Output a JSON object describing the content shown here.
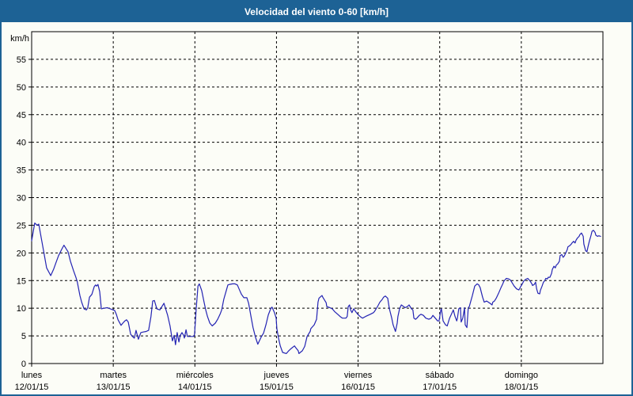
{
  "window": {
    "title": "Velocidad del viento 0-60 [km/h]"
  },
  "colors": {
    "titlebar_bg": "#1d6295",
    "title_text": "#ffffff",
    "outer_border": "#1d6295",
    "background": "#fcfdf7",
    "line": "#2323b3",
    "grid": "#000000",
    "axis_text": "#000000"
  },
  "chart_data": {
    "type": "line",
    "title": "Velocidad del viento 0-60 [km/h]",
    "ylabel": "km/h",
    "xlabel": "",
    "ylim": [
      0,
      60
    ],
    "yticks": [
      0,
      5,
      10,
      15,
      20,
      25,
      30,
      35,
      40,
      45,
      50,
      55
    ],
    "x_range_hours": [
      0,
      168
    ],
    "grid": "dashed-black",
    "legend": "none",
    "x_days": [
      {
        "name": "lunes",
        "date": "12/01/15",
        "hour": 0
      },
      {
        "name": "martes",
        "date": "13/01/15",
        "hour": 24
      },
      {
        "name": "miércoles",
        "date": "14/01/15",
        "hour": 48
      },
      {
        "name": "jueves",
        "date": "15/01/15",
        "hour": 72
      },
      {
        "name": "viernes",
        "date": "16/01/15",
        "hour": 96
      },
      {
        "name": "sábado",
        "date": "17/01/15",
        "hour": 120
      },
      {
        "name": "domingo",
        "date": "18/01/15",
        "hour": 144
      }
    ],
    "series": [
      {
        "name": "Velocidad del viento",
        "unit": "km/h",
        "color": "#2323b3",
        "points_hours_kmh": [
          [
            0,
            22.2
          ],
          [
            0.9,
            25.4
          ],
          [
            1.6,
            25.0
          ],
          [
            2.1,
            25.2
          ],
          [
            3,
            22.1
          ],
          [
            3.7,
            19.7
          ],
          [
            4.4,
            17.3
          ],
          [
            5.6,
            15.9
          ],
          [
            6.5,
            17.1
          ],
          [
            7.2,
            18.3
          ],
          [
            7.9,
            19.5
          ],
          [
            8.8,
            20.6
          ],
          [
            9.5,
            21.4
          ],
          [
            10.7,
            20.2
          ],
          [
            11.4,
            18.5
          ],
          [
            12.3,
            16.8
          ],
          [
            13,
            15.6
          ],
          [
            13.4,
            14.8
          ],
          [
            14.2,
            12.3
          ],
          [
            14.7,
            11.1
          ],
          [
            15.4,
            9.9
          ],
          [
            16.1,
            9.7
          ],
          [
            16.5,
            10.1
          ],
          [
            17,
            12
          ],
          [
            17.7,
            12.5
          ],
          [
            18.4,
            13.9
          ],
          [
            18.8,
            14.2
          ],
          [
            19.1,
            14
          ],
          [
            19.5,
            14.3
          ],
          [
            20,
            13
          ],
          [
            20.5,
            9.9
          ],
          [
            21.2,
            10
          ],
          [
            22.3,
            10.1
          ],
          [
            23.5,
            9.8
          ],
          [
            24.4,
            9.6
          ],
          [
            24.9,
            8.9
          ],
          [
            25.4,
            7.9
          ],
          [
            26.3,
            6.9
          ],
          [
            26.8,
            7.3
          ],
          [
            27.4,
            7.7
          ],
          [
            27.9,
            7.9
          ],
          [
            28.4,
            7.5
          ],
          [
            29.1,
            5.3
          ],
          [
            29.8,
            4.8
          ],
          [
            30.2,
            4.6
          ],
          [
            30.7,
            6
          ],
          [
            31.4,
            4.4
          ],
          [
            32.1,
            5.6
          ],
          [
            32.8,
            5.7
          ],
          [
            33.7,
            5.8
          ],
          [
            34.4,
            6
          ],
          [
            35.1,
            8.5
          ],
          [
            35.6,
            11.3
          ],
          [
            36.1,
            11.4
          ],
          [
            36.8,
            9.9
          ],
          [
            37.7,
            9.7
          ],
          [
            38.9,
            10.9
          ],
          [
            40,
            8.7
          ],
          [
            40.7,
            6.8
          ],
          [
            41.4,
            4.1
          ],
          [
            41.9,
            5.1
          ],
          [
            42.3,
            3.4
          ],
          [
            42.8,
            5.6
          ],
          [
            43.3,
            3.9
          ],
          [
            43.7,
            5.1
          ],
          [
            44.2,
            5.6
          ],
          [
            44.7,
            5.1
          ],
          [
            44.9,
            4.6
          ],
          [
            45.4,
            6.1
          ],
          [
            45.8,
            4.9
          ],
          [
            46.5,
            4.9
          ],
          [
            47.7,
            4.9
          ],
          [
            47.9,
            5.3
          ],
          [
            48.4,
            10
          ],
          [
            48.9,
            14
          ],
          [
            49.3,
            14.4
          ],
          [
            50,
            13.2
          ],
          [
            50.7,
            11.1
          ],
          [
            51.2,
            9.7
          ],
          [
            51.7,
            8.5
          ],
          [
            52.4,
            7.3
          ],
          [
            53.1,
            6.8
          ],
          [
            54,
            7.3
          ],
          [
            54.7,
            8
          ],
          [
            55.4,
            8.9
          ],
          [
            55.9,
            9.7
          ],
          [
            56.5,
            11.6
          ],
          [
            57,
            12.7
          ],
          [
            57.7,
            14.2
          ],
          [
            58.2,
            14.3
          ],
          [
            59.1,
            14.4
          ],
          [
            59.8,
            14.4
          ],
          [
            60.5,
            14.2
          ],
          [
            61.2,
            13.2
          ],
          [
            61.7,
            12.5
          ],
          [
            62.4,
            11.9
          ],
          [
            63.3,
            11.9
          ],
          [
            63.8,
            10.9
          ],
          [
            64.5,
            8.5
          ],
          [
            65.1,
            6.5
          ],
          [
            65.8,
            4.8
          ],
          [
            66.5,
            3.5
          ],
          [
            67.5,
            4.8
          ],
          [
            68.2,
            5.5
          ],
          [
            68.9,
            7
          ],
          [
            69.6,
            8.8
          ],
          [
            70.3,
            9.9
          ],
          [
            70.7,
            10.2
          ],
          [
            71.4,
            9.2
          ],
          [
            71.9,
            8.2
          ],
          [
            72.1,
            6.3
          ],
          [
            72.6,
            4.6
          ],
          [
            73.1,
            3.2
          ],
          [
            73.8,
            2
          ],
          [
            74.9,
            1.8
          ],
          [
            75.6,
            2.3
          ],
          [
            76.3,
            2.7
          ],
          [
            77.3,
            3.2
          ],
          [
            77.5,
            3
          ],
          [
            78.4,
            2.3
          ],
          [
            78.6,
            1.8
          ],
          [
            79.6,
            2.3
          ],
          [
            80.3,
            3.1
          ],
          [
            81,
            4.9
          ],
          [
            81.9,
            5.8
          ],
          [
            82.1,
            6.3
          ],
          [
            83.1,
            7
          ],
          [
            83.8,
            8
          ],
          [
            84.2,
            11.1
          ],
          [
            84.5,
            11.8
          ],
          [
            85.4,
            12.3
          ],
          [
            85.6,
            12
          ],
          [
            86.6,
            11
          ],
          [
            86.8,
            10.3
          ],
          [
            87.7,
            10.1
          ],
          [
            88.4,
            9.9
          ],
          [
            89.1,
            9.4
          ],
          [
            90,
            8.9
          ],
          [
            90.7,
            8.5
          ],
          [
            91.4,
            8.2
          ],
          [
            92.4,
            8.2
          ],
          [
            92.8,
            8.5
          ],
          [
            93.1,
            10.3
          ],
          [
            93.5,
            10.6
          ],
          [
            93.8,
            9.7
          ],
          [
            94.2,
            9.2
          ],
          [
            94.7,
            9.9
          ],
          [
            95.4,
            9.3
          ],
          [
            95.9,
            8.9
          ],
          [
            96.6,
            8.5
          ],
          [
            97.3,
            8.2
          ],
          [
            98.2,
            8.5
          ],
          [
            98.9,
            8.7
          ],
          [
            99.6,
            8.9
          ],
          [
            100.5,
            9.2
          ],
          [
            100.8,
            9.4
          ],
          [
            101.7,
            10.3
          ],
          [
            102.4,
            11.1
          ],
          [
            103.1,
            11.6
          ],
          [
            103.5,
            12
          ],
          [
            104,
            12.2
          ],
          [
            104.7,
            11.8
          ],
          [
            105.2,
            9.9
          ],
          [
            105.4,
            9.4
          ],
          [
            105.9,
            8.2
          ],
          [
            106.3,
            7
          ],
          [
            107,
            5.8
          ],
          [
            107.5,
            7.3
          ],
          [
            107.7,
            8.5
          ],
          [
            108.2,
            9.9
          ],
          [
            108.7,
            10.6
          ],
          [
            109.4,
            10.3
          ],
          [
            109.8,
            10.1
          ],
          [
            110.5,
            10.3
          ],
          [
            111,
            10.6
          ],
          [
            111.7,
            9.9
          ],
          [
            112.1,
            9.7
          ],
          [
            112.4,
            8.2
          ],
          [
            112.9,
            8
          ],
          [
            113.3,
            8.2
          ],
          [
            114,
            8.7
          ],
          [
            114.5,
            8.9
          ],
          [
            115.2,
            8.7
          ],
          [
            115.9,
            8.2
          ],
          [
            116.8,
            8
          ],
          [
            117.5,
            8.2
          ],
          [
            118,
            8.7
          ],
          [
            118.7,
            8.2
          ],
          [
            119.4,
            7.7
          ],
          [
            119.8,
            7.7
          ],
          [
            120.3,
            9.6
          ],
          [
            120.5,
            9.9
          ],
          [
            121,
            7.7
          ],
          [
            121.7,
            7
          ],
          [
            122.2,
            6.8
          ],
          [
            122.9,
            8.2
          ],
          [
            123.8,
            9.4
          ],
          [
            124,
            9.7
          ],
          [
            124.5,
            8.5
          ],
          [
            125,
            7.7
          ],
          [
            125.2,
            8.2
          ],
          [
            125.6,
            9.9
          ],
          [
            126.1,
            10.1
          ],
          [
            126.3,
            7.5
          ],
          [
            126.8,
            8.2
          ],
          [
            127.3,
            10.1
          ],
          [
            127.5,
            7
          ],
          [
            128,
            6.5
          ],
          [
            128.4,
            10.1
          ],
          [
            128.7,
            10.3
          ],
          [
            129.6,
            12.3
          ],
          [
            130.3,
            14
          ],
          [
            131,
            14.4
          ],
          [
            131.5,
            14.2
          ],
          [
            131.9,
            13.7
          ],
          [
            132.2,
            13
          ],
          [
            132.6,
            12
          ],
          [
            133.1,
            11.1
          ],
          [
            133.8,
            11.3
          ],
          [
            134.3,
            11.1
          ],
          [
            135,
            10.8
          ],
          [
            135.4,
            10.6
          ],
          [
            135.6,
            11.1
          ],
          [
            136.1,
            11.3
          ],
          [
            136.6,
            11.8
          ],
          [
            137.3,
            12.7
          ],
          [
            138,
            13.7
          ],
          [
            138.4,
            14.2
          ],
          [
            138.9,
            14.9
          ],
          [
            139.6,
            15.4
          ],
          [
            140.3,
            15.3
          ],
          [
            140.8,
            15.1
          ],
          [
            141.2,
            14.7
          ],
          [
            141.9,
            14
          ],
          [
            142.6,
            13.5
          ],
          [
            143.3,
            13.3
          ],
          [
            143.8,
            13.9
          ],
          [
            144.3,
            14.4
          ],
          [
            144.7,
            14.9
          ],
          [
            145.2,
            15.2
          ],
          [
            145.9,
            15.4
          ],
          [
            146.6,
            14.9
          ],
          [
            147.1,
            14.4
          ],
          [
            147.3,
            14.1
          ],
          [
            147.8,
            14.3
          ],
          [
            148.2,
            14.7
          ],
          [
            148.5,
            13.5
          ],
          [
            148.9,
            12.7
          ],
          [
            149.4,
            12.6
          ],
          [
            149.6,
            13.2
          ],
          [
            150.1,
            14
          ],
          [
            150.5,
            14.7
          ],
          [
            150.8,
            14.9
          ],
          [
            151.2,
            15.4
          ],
          [
            151.7,
            15.3
          ],
          [
            151.9,
            15.6
          ],
          [
            152.4,
            15.6
          ],
          [
            152.9,
            16.3
          ],
          [
            153.1,
            17
          ],
          [
            153.6,
            17.6
          ],
          [
            154,
            17.3
          ],
          [
            154.3,
            17.8
          ],
          [
            154.7,
            18
          ],
          [
            155.2,
            18.5
          ],
          [
            155.4,
            19.5
          ],
          [
            155.9,
            19.7
          ],
          [
            156.3,
            19.2
          ],
          [
            156.6,
            19.4
          ],
          [
            157,
            19.9
          ],
          [
            157.5,
            20.6
          ],
          [
            157.7,
            21.1
          ],
          [
            158.2,
            21.3
          ],
          [
            158.7,
            21.6
          ],
          [
            158.9,
            21.8
          ],
          [
            159.4,
            22.1
          ],
          [
            159.8,
            21.8
          ],
          [
            160.1,
            22.3
          ],
          [
            160.5,
            22.7
          ],
          [
            161,
            23
          ],
          [
            161.2,
            23.3
          ],
          [
            161.7,
            23.6
          ],
          [
            162.2,
            23
          ],
          [
            162.4,
            21.6
          ],
          [
            162.9,
            20.4
          ],
          [
            163.3,
            20.2
          ],
          [
            163.6,
            21.1
          ],
          [
            164,
            22.1
          ],
          [
            164.5,
            23.2
          ],
          [
            164.8,
            23.9
          ],
          [
            165.2,
            24.1
          ],
          [
            165.7,
            23.7
          ],
          [
            165.9,
            23.2
          ],
          [
            166.4,
            23
          ],
          [
            166.8,
            23.1
          ],
          [
            167.3,
            23
          ]
        ]
      }
    ]
  }
}
